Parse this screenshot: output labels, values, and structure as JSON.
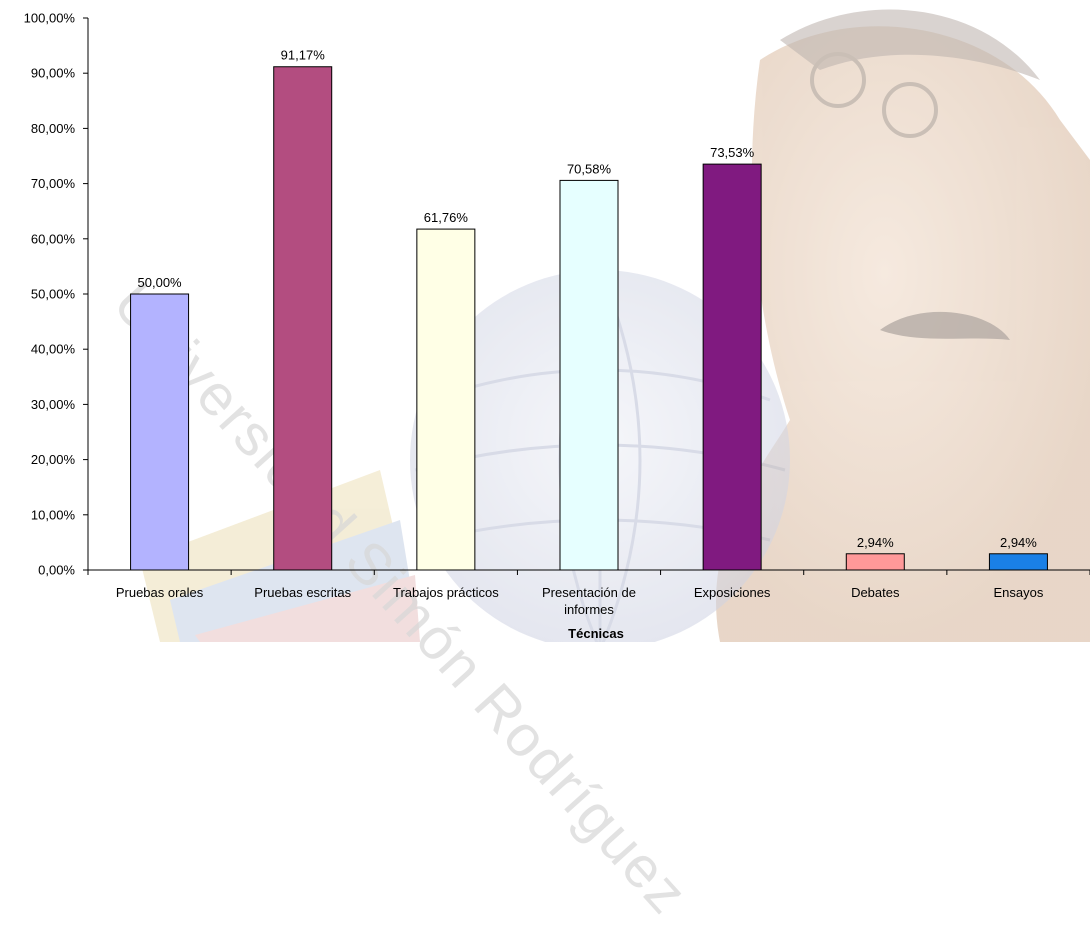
{
  "chart_data": {
    "type": "bar",
    "categories": [
      "Pruebas orales",
      "Pruebas escritas",
      "Trabajos prácticos",
      "Presentación de informes",
      "Exposiciones",
      "Debates",
      "Ensayos"
    ],
    "category_lines": [
      [
        "Pruebas orales"
      ],
      [
        "Pruebas escritas"
      ],
      [
        "Trabajos prácticos"
      ],
      [
        "Presentación de",
        "informes"
      ],
      [
        "Exposiciones"
      ],
      [
        "Debates"
      ],
      [
        "Ensayos"
      ]
    ],
    "values": [
      50.0,
      91.17,
      61.76,
      70.58,
      73.53,
      2.94,
      2.94
    ],
    "value_labels": [
      "50,00%",
      "91,17%",
      "61,76%",
      "70,58%",
      "73,53%",
      "2,94%",
      "2,94%"
    ],
    "colors": [
      "#b3b3ff",
      "#b34d80",
      "#ffffe6",
      "#e6ffff",
      "#801a80",
      "#ff9999",
      "#1a80e6"
    ],
    "xlabel": "Técnicas",
    "ylabel": "",
    "ylim": [
      0,
      100
    ],
    "yticks": [
      "0,00%",
      "10,00%",
      "20,00%",
      "30,00%",
      "40,00%",
      "50,00%",
      "60,00%",
      "70,00%",
      "80,00%",
      "90,00%",
      "100,00%"
    ],
    "grid": false,
    "legend": "none"
  },
  "watermark": {
    "text": "Universidad Simón Rodríguez"
  }
}
